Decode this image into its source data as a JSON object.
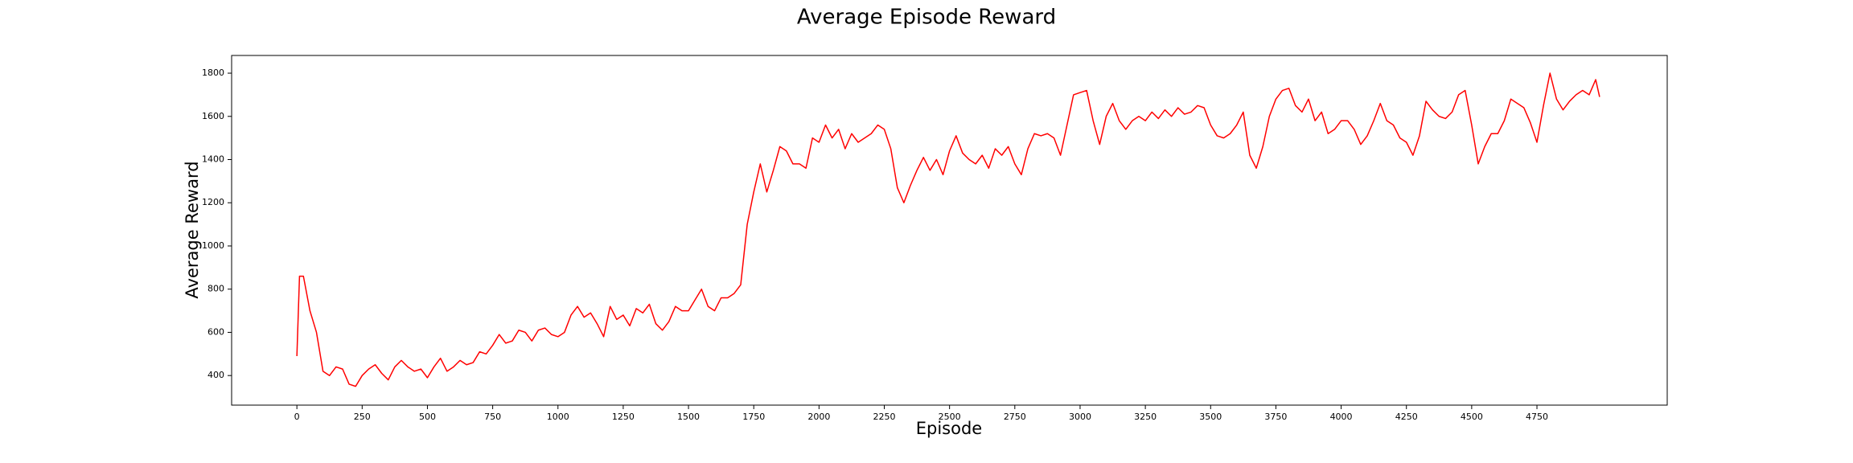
{
  "chart_data": {
    "type": "line",
    "title": "Average Episode Reward",
    "x_label": "Episode",
    "y_label": "Average Reward",
    "x": [
      0,
      10,
      25,
      50,
      75,
      100,
      125,
      150,
      175,
      200,
      225,
      250,
      275,
      300,
      325,
      350,
      375,
      400,
      425,
      450,
      475,
      500,
      525,
      550,
      575,
      600,
      625,
      650,
      675,
      700,
      725,
      750,
      775,
      800,
      825,
      850,
      875,
      900,
      925,
      950,
      975,
      1000,
      1025,
      1050,
      1075,
      1100,
      1125,
      1150,
      1175,
      1200,
      1225,
      1250,
      1275,
      1300,
      1325,
      1350,
      1375,
      1400,
      1425,
      1450,
      1475,
      1500,
      1525,
      1550,
      1575,
      1600,
      1625,
      1650,
      1675,
      1700,
      1725,
      1750,
      1775,
      1800,
      1825,
      1850,
      1875,
      1900,
      1925,
      1950,
      1975,
      2000,
      2025,
      2050,
      2075,
      2100,
      2125,
      2150,
      2175,
      2200,
      2225,
      2250,
      2275,
      2300,
      2325,
      2350,
      2375,
      2400,
      2425,
      2450,
      2475,
      2500,
      2525,
      2550,
      2575,
      2600,
      2625,
      2650,
      2675,
      2700,
      2725,
      2750,
      2775,
      2800,
      2825,
      2850,
      2875,
      2900,
      2925,
      2950,
      2975,
      3000,
      3025,
      3050,
      3075,
      3100,
      3125,
      3150,
      3175,
      3200,
      3225,
      3250,
      3275,
      3300,
      3325,
      3350,
      3375,
      3400,
      3425,
      3450,
      3475,
      3500,
      3525,
      3550,
      3575,
      3600,
      3625,
      3650,
      3675,
      3700,
      3725,
      3750,
      3775,
      3800,
      3825,
      3850,
      3875,
      3900,
      3925,
      3950,
      3975,
      4000,
      4025,
      4050,
      4075,
      4100,
      4125,
      4150,
      4175,
      4200,
      4225,
      4250,
      4275,
      4300,
      4325,
      4350,
      4375,
      4400,
      4425,
      4450,
      4475,
      4500,
      4525,
      4550,
      4575,
      4600,
      4625,
      4650,
      4675,
      4700,
      4725,
      4750,
      4775,
      4800,
      4825,
      4850,
      4875,
      4900,
      4925,
      4950,
      4975,
      4990
    ],
    "series": [
      {
        "name": "Average Reward",
        "color": "#ff0000",
        "values": [
          490,
          860,
          860,
          700,
          600,
          420,
          400,
          440,
          430,
          360,
          350,
          400,
          430,
          450,
          410,
          380,
          440,
          470,
          440,
          420,
          430,
          390,
          440,
          480,
          420,
          440,
          470,
          450,
          460,
          510,
          500,
          540,
          590,
          550,
          560,
          610,
          600,
          560,
          610,
          620,
          590,
          580,
          600,
          680,
          720,
          670,
          690,
          640,
          580,
          720,
          660,
          680,
          630,
          710,
          690,
          730,
          640,
          610,
          650,
          720,
          700,
          700,
          750,
          800,
          720,
          700,
          760,
          760,
          780,
          820,
          1100,
          1250,
          1380,
          1250,
          1350,
          1460,
          1440,
          1380,
          1380,
          1360,
          1500,
          1480,
          1560,
          1500,
          1540,
          1450,
          1520,
          1480,
          1500,
          1520,
          1560,
          1540,
          1450,
          1270,
          1200,
          1280,
          1350,
          1410,
          1350,
          1400,
          1330,
          1440,
          1510,
          1430,
          1400,
          1380,
          1420,
          1360,
          1450,
          1420,
          1460,
          1380,
          1330,
          1450,
          1520,
          1510,
          1520,
          1500,
          1420,
          1560,
          1700,
          1710,
          1720,
          1580,
          1470,
          1600,
          1660,
          1580,
          1540,
          1580,
          1600,
          1580,
          1620,
          1590,
          1630,
          1600,
          1640,
          1610,
          1620,
          1650,
          1640,
          1560,
          1510,
          1500,
          1520,
          1560,
          1620,
          1420,
          1360,
          1460,
          1600,
          1680,
          1720,
          1730,
          1650,
          1620,
          1680,
          1580,
          1620,
          1520,
          1540,
          1580,
          1580,
          1540,
          1470,
          1510,
          1580,
          1660,
          1580,
          1560,
          1500,
          1480,
          1420,
          1510,
          1670,
          1630,
          1600,
          1590,
          1620,
          1700,
          1720,
          1560,
          1380,
          1460,
          1520,
          1520,
          1580,
          1680,
          1660,
          1640,
          1570,
          1480,
          1650,
          1800,
          1680,
          1630,
          1670,
          1700,
          1720,
          1700,
          1770,
          1690
        ]
      }
    ],
    "xlim": [
      -250,
      5249
    ],
    "ylim": [
      263,
      1882
    ],
    "xticks": [
      0,
      250,
      500,
      750,
      1000,
      1250,
      1500,
      1750,
      2000,
      2250,
      2500,
      2750,
      3000,
      3250,
      3500,
      3750,
      4000,
      4250,
      4500,
      4750
    ],
    "yticks": [
      400,
      600,
      800,
      1000,
      1200,
      1400,
      1600,
      1800
    ],
    "grid": false
  }
}
